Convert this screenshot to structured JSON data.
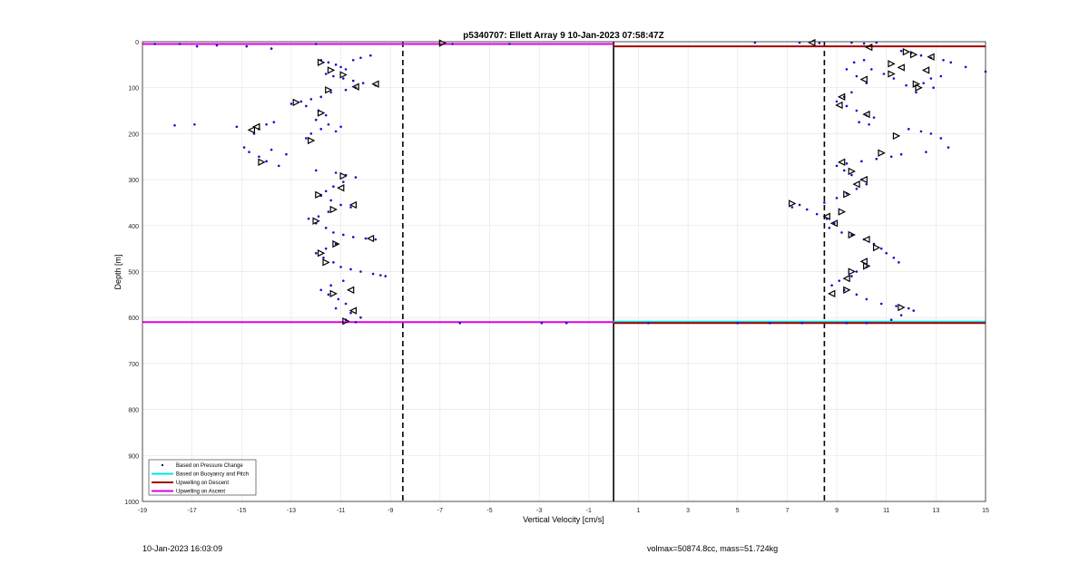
{
  "chart_data": {
    "type": "scatter",
    "title": "p5340707: Ellett Array 9 10-Jan-2023 07:58:47Z",
    "xlabel": "Vertical Velocity [cm/s]",
    "ylabel": "Depth [m]",
    "xlim": [
      -19,
      15
    ],
    "ylim": [
      0,
      1000
    ],
    "y_reversed": true,
    "x_ticks": [
      -19,
      -17,
      -15,
      -13,
      -11,
      -9,
      -7,
      -5,
      -3,
      -1,
      1,
      3,
      5,
      7,
      9,
      11,
      13,
      15
    ],
    "y_ticks": [
      0,
      100,
      200,
      300,
      400,
      500,
      600,
      700,
      800,
      900,
      1000
    ],
    "grid": true,
    "legend_position": "bottom-left",
    "legend": [
      {
        "label": "Based on Pressure Change",
        "color": "#000000",
        "style": "dot"
      },
      {
        "label": "Based on Buoyancy and Pitch",
        "color": "#00e5ee",
        "style": "line"
      },
      {
        "label": "Upwelling on Descent",
        "color": "#a00000",
        "style": "line"
      },
      {
        "label": "Upwelling on Ascent",
        "color": "#e000e0",
        "style": "line"
      }
    ],
    "reference_lines": {
      "zero_line_x": 0,
      "dashed_x": [
        -8.5,
        8.5
      ],
      "ascent_horizontal": {
        "x_range": [
          -19,
          0
        ],
        "y": [
          5,
          610
        ],
        "color": "#e000e0"
      },
      "descent_horizontal": {
        "x_range": [
          0,
          15
        ],
        "y": [
          10,
          612
        ],
        "color": "#a00000"
      },
      "buoyancy_horizontal": {
        "x_range": [
          0,
          15
        ],
        "y": [
          609
        ],
        "color": "#00e5ee"
      }
    },
    "series": [
      {
        "points": [
          [
            -18.5,
            5
          ],
          [
            -17.5,
            5
          ],
          [
            -16.8,
            10
          ],
          [
            -16,
            8
          ],
          [
            -14.8,
            10
          ],
          [
            -13.8,
            15
          ],
          [
            -12,
            5
          ],
          [
            -6.5,
            5
          ],
          [
            -4.2,
            5
          ],
          [
            -11.8,
            40
          ],
          [
            -11.5,
            45
          ],
          [
            -11.2,
            50
          ],
          [
            -11,
            55
          ],
          [
            -10.8,
            60
          ],
          [
            -10.5,
            40
          ],
          [
            -10.2,
            35
          ],
          [
            -9.8,
            30
          ],
          [
            -11.6,
            70
          ],
          [
            -11.3,
            75
          ],
          [
            -10.9,
            80
          ],
          [
            -10.5,
            85
          ],
          [
            -10.1,
            90
          ],
          [
            -9.6,
            95
          ],
          [
            -10.4,
            100
          ],
          [
            -10.8,
            105
          ],
          [
            -11.4,
            110
          ],
          [
            -11.8,
            120
          ],
          [
            -12.2,
            125
          ],
          [
            -12.6,
            130
          ],
          [
            -13,
            135
          ],
          [
            -12.4,
            140
          ],
          [
            -11.9,
            150
          ],
          [
            -11.6,
            160
          ],
          [
            -12,
            170
          ],
          [
            -11.5,
            180
          ],
          [
            -11.8,
            190
          ],
          [
            -12.2,
            200
          ],
          [
            -12.4,
            210
          ],
          [
            -11.2,
            195
          ],
          [
            -11,
            185
          ],
          [
            -16.9,
            180
          ],
          [
            -17.7,
            182
          ],
          [
            -15.2,
            185
          ],
          [
            -14.3,
            190
          ],
          [
            -14,
            180
          ],
          [
            -13.7,
            175
          ],
          [
            -14.5,
            200
          ],
          [
            -14.9,
            230
          ],
          [
            -14.7,
            240
          ],
          [
            -14.3,
            250
          ],
          [
            -14,
            260
          ],
          [
            -13.5,
            270
          ],
          [
            -13.2,
            245
          ],
          [
            -13.8,
            235
          ],
          [
            -12,
            280
          ],
          [
            -11.2,
            285
          ],
          [
            -10.8,
            290
          ],
          [
            -10.4,
            295
          ],
          [
            -10.9,
            305
          ],
          [
            -11.3,
            315
          ],
          [
            -11.6,
            325
          ],
          [
            -11.8,
            335
          ],
          [
            -11.4,
            345
          ],
          [
            -11,
            355
          ],
          [
            -10.6,
            360
          ],
          [
            -11.5,
            370
          ],
          [
            -11.9,
            380
          ],
          [
            -12.3,
            385
          ],
          [
            -12,
            395
          ],
          [
            -11.6,
            405
          ],
          [
            -11.3,
            415
          ],
          [
            -10.9,
            420
          ],
          [
            -10.5,
            425
          ],
          [
            -10,
            428
          ],
          [
            -9.6,
            430
          ],
          [
            -11.2,
            440
          ],
          [
            -11.6,
            450
          ],
          [
            -12,
            460
          ],
          [
            -11.7,
            470
          ],
          [
            -11.3,
            480
          ],
          [
            -11,
            490
          ],
          [
            -10.6,
            495
          ],
          [
            -10.2,
            500
          ],
          [
            -9.7,
            505
          ],
          [
            -9.4,
            508
          ],
          [
            -9.2,
            510
          ],
          [
            -10.9,
            520
          ],
          [
            -11.4,
            530
          ],
          [
            -11.8,
            540
          ],
          [
            -11.5,
            550
          ],
          [
            -11.1,
            560
          ],
          [
            -10.8,
            570
          ],
          [
            -11.2,
            580
          ],
          [
            -10.6,
            590
          ],
          [
            -10.2,
            600
          ],
          [
            -10.8,
            605
          ],
          [
            -10.4,
            610
          ],
          [
            -6.2,
            612
          ],
          [
            -2.9,
            612
          ],
          [
            -1.9,
            612
          ],
          [
            1.4,
            612
          ],
          [
            5,
            612
          ],
          [
            6.3,
            612
          ],
          [
            7.6,
            612
          ],
          [
            9.4,
            612
          ],
          [
            10.2,
            612
          ],
          [
            5.7,
            2
          ],
          [
            7.5,
            2
          ],
          [
            8.3,
            3
          ],
          [
            9.6,
            2
          ],
          [
            10.1,
            4
          ],
          [
            10.6,
            2
          ],
          [
            11.6,
            20
          ],
          [
            12,
            25
          ],
          [
            12.4,
            30
          ],
          [
            12.8,
            35
          ],
          [
            13.3,
            40
          ],
          [
            13.6,
            45
          ],
          [
            14.2,
            55
          ],
          [
            15,
            65
          ],
          [
            13.2,
            75
          ],
          [
            12.8,
            80
          ],
          [
            12.5,
            90
          ],
          [
            12.9,
            100
          ],
          [
            12.2,
            110
          ],
          [
            11.8,
            95
          ],
          [
            11.3,
            80
          ],
          [
            10.9,
            70
          ],
          [
            10.4,
            60
          ],
          [
            10.1,
            40
          ],
          [
            9.7,
            45
          ],
          [
            9.4,
            60
          ],
          [
            9.8,
            75
          ],
          [
            10.2,
            90
          ],
          [
            9.6,
            110
          ],
          [
            9.3,
            120
          ],
          [
            9,
            130
          ],
          [
            9.4,
            140
          ],
          [
            9.8,
            150
          ],
          [
            10.2,
            160
          ],
          [
            10.5,
            165
          ],
          [
            9.9,
            175
          ],
          [
            10.3,
            180
          ],
          [
            11.9,
            190
          ],
          [
            12.4,
            195
          ],
          [
            12.8,
            200
          ],
          [
            13.2,
            210
          ],
          [
            13.5,
            230
          ],
          [
            12.6,
            240
          ],
          [
            11.6,
            245
          ],
          [
            11.2,
            250
          ],
          [
            10.6,
            255
          ],
          [
            10,
            260
          ],
          [
            9.4,
            265
          ],
          [
            9,
            270
          ],
          [
            9.3,
            280
          ],
          [
            9.6,
            290
          ],
          [
            10,
            300
          ],
          [
            10.2,
            310
          ],
          [
            9.8,
            320
          ],
          [
            9.4,
            330
          ],
          [
            9,
            340
          ],
          [
            8.5,
            350
          ],
          [
            7.5,
            355
          ],
          [
            7.2,
            360
          ],
          [
            7.8,
            365
          ],
          [
            8.2,
            375
          ],
          [
            8.6,
            385
          ],
          [
            8.9,
            395
          ],
          [
            8.7,
            405
          ],
          [
            9.2,
            415
          ],
          [
            9.6,
            420
          ],
          [
            10.1,
            430
          ],
          [
            10.5,
            440
          ],
          [
            10.8,
            450
          ],
          [
            11,
            460
          ],
          [
            11.3,
            470
          ],
          [
            11.5,
            480
          ],
          [
            10.2,
            490
          ],
          [
            9.8,
            500
          ],
          [
            9.6,
            510
          ],
          [
            9.1,
            520
          ],
          [
            8.8,
            530
          ],
          [
            9.3,
            540
          ],
          [
            9.8,
            550
          ],
          [
            10.2,
            560
          ],
          [
            10.8,
            570
          ],
          [
            11.4,
            575
          ],
          [
            11.9,
            580
          ],
          [
            12.1,
            585
          ],
          [
            11.6,
            595
          ],
          [
            11.2,
            605
          ]
        ]
      }
    ],
    "triangles": [
      [
        -6.9,
        3,
        "right"
      ],
      [
        -11.8,
        45,
        "right"
      ],
      [
        -11.4,
        62,
        "right"
      ],
      [
        -10.9,
        72,
        "right"
      ],
      [
        -10.4,
        98,
        "left"
      ],
      [
        -9.6,
        92,
        "left"
      ],
      [
        -11.5,
        105,
        "right"
      ],
      [
        -12.8,
        132,
        "right"
      ],
      [
        -11.8,
        155,
        "right"
      ],
      [
        -14.4,
        185,
        "left"
      ],
      [
        -14.6,
        192,
        "left"
      ],
      [
        -12.2,
        215,
        "right"
      ],
      [
        -14.2,
        262,
        "right"
      ],
      [
        -10.9,
        292,
        "right"
      ],
      [
        -11,
        318,
        "left"
      ],
      [
        -11.9,
        333,
        "right"
      ],
      [
        -10.5,
        355,
        "left"
      ],
      [
        -11.3,
        365,
        "right"
      ],
      [
        -12,
        390,
        "right"
      ],
      [
        -9.8,
        428,
        "left"
      ],
      [
        -11.2,
        440,
        "right"
      ],
      [
        -11.8,
        460,
        "right"
      ],
      [
        -11.6,
        480,
        "right"
      ],
      [
        -10.6,
        540,
        "left"
      ],
      [
        -11.3,
        548,
        "right"
      ],
      [
        -10.5,
        585,
        "left"
      ],
      [
        -10.8,
        608,
        "right"
      ],
      [
        8,
        2,
        "left"
      ],
      [
        10.3,
        12,
        "left"
      ],
      [
        11.8,
        22,
        "right"
      ],
      [
        12.1,
        28,
        "right"
      ],
      [
        12.8,
        33,
        "left"
      ],
      [
        11.2,
        48,
        "right"
      ],
      [
        11.6,
        56,
        "left"
      ],
      [
        12.6,
        62,
        "left"
      ],
      [
        11.2,
        70,
        "right"
      ],
      [
        10.1,
        82,
        "left"
      ],
      [
        12.2,
        92,
        "right"
      ],
      [
        12.3,
        100,
        "right"
      ],
      [
        9.2,
        120,
        "left"
      ],
      [
        9.1,
        138,
        "left"
      ],
      [
        10.2,
        158,
        "left"
      ],
      [
        11.4,
        205,
        "right"
      ],
      [
        10.8,
        242,
        "right"
      ],
      [
        9.2,
        262,
        "left"
      ],
      [
        9.6,
        282,
        "right"
      ],
      [
        10.1,
        300,
        "left"
      ],
      [
        9.8,
        310,
        "left"
      ],
      [
        9.4,
        332,
        "right"
      ],
      [
        7.2,
        352,
        "right"
      ],
      [
        9.2,
        370,
        "right"
      ],
      [
        8.6,
        380,
        "left"
      ],
      [
        8.9,
        395,
        "left"
      ],
      [
        9.6,
        420,
        "right"
      ],
      [
        10.2,
        430,
        "left"
      ],
      [
        10.6,
        448,
        "right"
      ],
      [
        10.1,
        478,
        "left"
      ],
      [
        10.2,
        488,
        "right"
      ],
      [
        9.6,
        500,
        "right"
      ],
      [
        9.4,
        515,
        "left"
      ],
      [
        9.4,
        540,
        "right"
      ],
      [
        8.8,
        548,
        "left"
      ],
      [
        11.6,
        578,
        "right"
      ]
    ]
  },
  "footer": {
    "left": "10-Jan-2023 16:03:09",
    "right": "volmax=50874.8cc, mass=51.724kg"
  }
}
